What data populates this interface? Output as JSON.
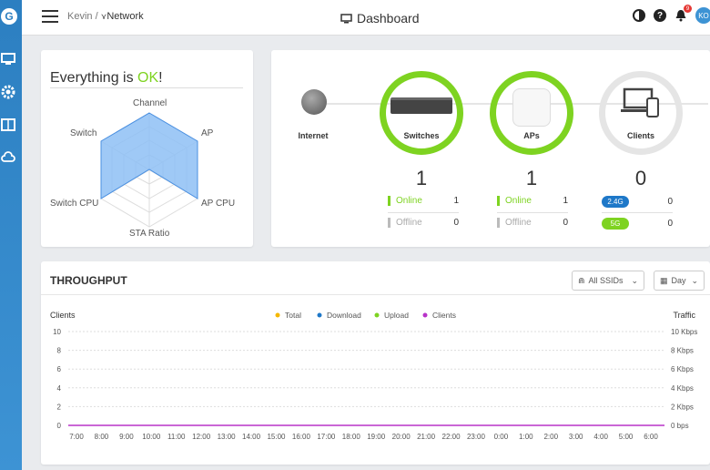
{
  "header": {
    "breadcrumb_site": "Kevin",
    "breadcrumb_sep": "/",
    "breadcrumb_network": "Network",
    "title": "Dashboard",
    "notif_count": "9",
    "avatar": "KO"
  },
  "status": {
    "prefix": "Everything is ",
    "ok": "OK",
    "suffix": "!"
  },
  "radar": {
    "labels": {
      "channel": "Channel",
      "ap": "AP",
      "ap_cpu": "AP CPU",
      "sta_ratio": "STA Ratio",
      "switch_cpu": "Switch CPU",
      "switch": "Switch"
    }
  },
  "topology": {
    "internet": "Internet",
    "switches": {
      "label": "Switches",
      "count": "1",
      "online_label": "Online",
      "online": "1",
      "offline_label": "Offline",
      "offline": "0"
    },
    "aps": {
      "label": "APs",
      "count": "1",
      "online_label": "Online",
      "online": "1",
      "offline_label": "Offline",
      "offline": "0"
    },
    "clients": {
      "label": "Clients",
      "count": "0",
      "band1": "2.4G",
      "band1_value": "0",
      "band2": "5G",
      "band2_value": "0"
    }
  },
  "throughput": {
    "title": "THROUGHPUT",
    "ssid": "All SSIDs",
    "period": "Day",
    "left_axis": "Clients",
    "right_axis": "Traffic",
    "legend": [
      "Total",
      "Download",
      "Upload",
      "Clients"
    ],
    "legend_colors": [
      "#f5b800",
      "#1e78c8",
      "#7ed321",
      "#b833c9"
    ],
    "y_left": [
      "10",
      "8",
      "6",
      "4",
      "2",
      "0"
    ],
    "y_right": [
      "10 Kbps",
      "8 Kbps",
      "6 Kbps",
      "4 Kbps",
      "2 Kbps",
      "0 bps"
    ],
    "x": [
      "7:00",
      "8:00",
      "9:00",
      "10:00",
      "11:00",
      "12:00",
      "13:00",
      "14:00",
      "15:00",
      "16:00",
      "17:00",
      "18:00",
      "19:00",
      "20:00",
      "21:00",
      "22:00",
      "23:00",
      "0:00",
      "1:00",
      "2:00",
      "3:00",
      "4:00",
      "5:00",
      "6:00"
    ]
  },
  "chart_data": {
    "type": "line",
    "title": "THROUGHPUT",
    "xlabel": "",
    "ylabel": "Clients",
    "ylabel_right": "Traffic",
    "categories": [
      "7:00",
      "8:00",
      "9:00",
      "10:00",
      "11:00",
      "12:00",
      "13:00",
      "14:00",
      "15:00",
      "16:00",
      "17:00",
      "18:00",
      "19:00",
      "20:00",
      "21:00",
      "22:00",
      "23:00",
      "0:00",
      "1:00",
      "2:00",
      "3:00",
      "4:00",
      "5:00",
      "6:00"
    ],
    "series": [
      {
        "name": "Clients",
        "values": [
          0,
          0,
          0,
          0,
          0,
          0,
          0,
          0,
          0,
          0,
          0,
          0,
          0,
          0,
          0,
          0,
          0,
          0,
          0,
          0,
          0,
          0,
          0,
          0
        ]
      }
    ],
    "ylim": [
      0,
      10
    ],
    "grid": true,
    "legend": "top"
  }
}
